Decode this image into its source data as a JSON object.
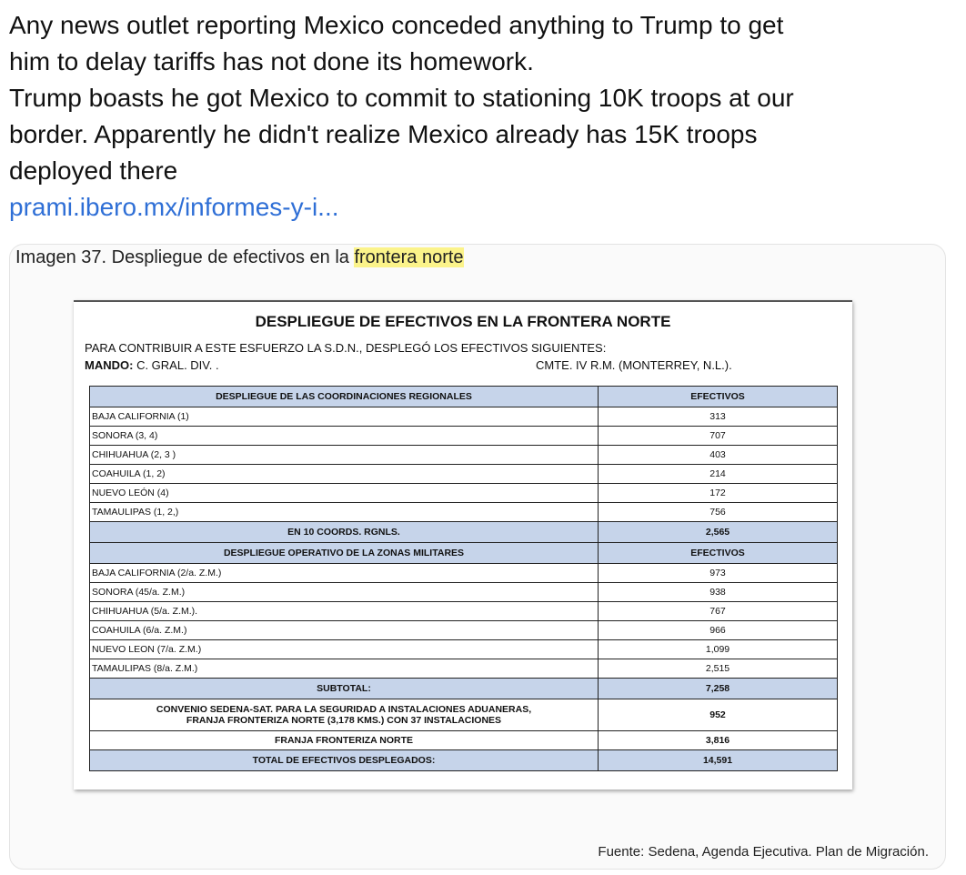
{
  "post": {
    "paragraphs": [
      [
        "Any news outlet reporting Mexico conceded anything to Trump to get",
        "him to delay tariffs has not done its homework."
      ],
      [
        "Trump boasts he got Mexico to commit to stationing 10K troops at our",
        "border. Apparently he didn't realize Mexico already has 15K troops",
        "deployed there"
      ]
    ],
    "link": "prami.ibero.mx/informes-y-i..."
  },
  "image": {
    "caption": {
      "text": "Imagen 37. Despliegue de efectivos en la",
      "highlight": "frontera norte"
    },
    "document": {
      "title": "DESPLIEGUE DE EFECTIVOS EN LA FRONTERA NORTE",
      "intro": "PARA CONTRIBUIR A ESTE ESFUERZO LA S.D.N., DESPLEGÓ LOS EFECTIVOS SIGUIENTES:",
      "mando_label": "MANDO:",
      "mando_value": "C. GRAL. DIV. .",
      "command": "CMTE. IV R.M. (MONTERREY, N.L.).",
      "table": {
        "header1": [
          "DESPLIEGUE DE LAS COORDINACIONES REGIONALES",
          "EFECTIVOS"
        ],
        "rows1": [
          [
            "BAJA CALIFORNIA (1)",
            "313"
          ],
          [
            "SONORA (3, 4)",
            "707"
          ],
          [
            "CHIHUAHUA (2, 3 )",
            "403"
          ],
          [
            "COAHUILA (1, 2)",
            "214"
          ],
          [
            "NUEVO LEÓN (4)",
            "172"
          ],
          [
            "TAMAULIPAS (1, 2,)",
            "756"
          ]
        ],
        "total1": [
          "EN 10 COORDS. RGNLS.",
          "2,565"
        ],
        "header2": [
          "DESPLIEGUE OPERATIVO DE LA ZONAS MILITARES",
          "EFECTIVOS"
        ],
        "rows2": [
          [
            "BAJA CALIFORNIA (2/a. Z.M.)",
            "973"
          ],
          [
            "SONORA (45/a. Z.M.)",
            "938"
          ],
          [
            "CHIHUAHUA (5/a. Z.M.).",
            "767"
          ],
          [
            "COAHUILA (6/a. Z.M.)",
            "966"
          ],
          [
            "NUEVO LEON (7/a. Z.M.)",
            "1,099"
          ],
          [
            "TAMAULIPAS (8/a. Z.M.)",
            "2,515"
          ]
        ],
        "subtotal": [
          "SUBTOTAL:",
          "7,258"
        ],
        "convenio": {
          "lines": [
            "CONVENIO SEDENA-SAT. PARA LA SEGURIDAD A INSTALACIONES ADUANERAS,",
            "FRANJA FRONTERIZA NORTE (3,178 KMS.) CON 37 INSTALACIONES"
          ],
          "value": "952"
        },
        "franja": [
          "FRANJA FRONTERIZA NORTE",
          "3,816"
        ],
        "total": [
          "TOTAL DE EFECTIVOS DESPLEGADOS:",
          "14,591"
        ]
      }
    },
    "source": "Fuente: Sedena, Agenda Ejecutiva. Plan de Migración."
  }
}
